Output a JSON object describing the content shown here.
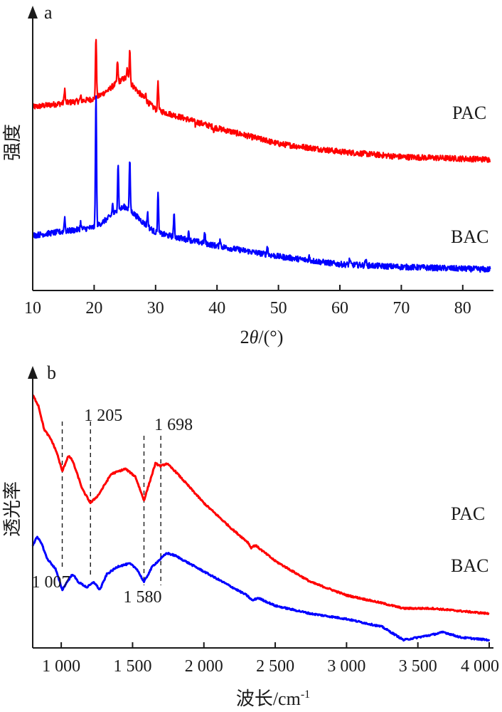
{
  "chart_data": [
    {
      "panel": "a",
      "type": "line",
      "xlabel": "2θ/(°)",
      "ylabel": "强度",
      "xlim": [
        10,
        85
      ],
      "xticks": [
        10,
        20,
        30,
        40,
        50,
        60,
        70,
        80
      ],
      "grid": false,
      "series": [
        {
          "name": "PAC",
          "color": "#ff0000",
          "baseline": [
            [
              10,
              0.7
            ],
            [
              20,
              0.73
            ],
            [
              25,
              0.78
            ],
            [
              30,
              0.69
            ],
            [
              40,
              0.62
            ],
            [
              50,
              0.56
            ],
            [
              60,
              0.53
            ],
            [
              70,
              0.51
            ],
            [
              84.5,
              0.5
            ]
          ],
          "peaks": [
            [
              15.2,
              0.77
            ],
            [
              17.8,
              0.74
            ],
            [
              20.3,
              0.97
            ],
            [
              22.4,
              0.75
            ],
            [
              23.8,
              0.85
            ],
            [
              25.4,
              0.82
            ],
            [
              25.8,
              0.9
            ],
            [
              28.4,
              0.74
            ],
            [
              30.4,
              0.8
            ],
            [
              36.5,
              0.63
            ],
            [
              39.5,
              0.61
            ],
            [
              48.0,
              0.58
            ]
          ]
        },
        {
          "name": "BAC",
          "color": "#0000ff",
          "baseline": [
            [
              10,
              0.21
            ],
            [
              20,
              0.24
            ],
            [
              25,
              0.29
            ],
            [
              30,
              0.22
            ],
            [
              40,
              0.17
            ],
            [
              50,
              0.13
            ],
            [
              60,
              0.1
            ],
            [
              70,
              0.09
            ],
            [
              84.5,
              0.08
            ]
          ],
          "peaks": [
            [
              15.2,
              0.28
            ],
            [
              17.8,
              0.26
            ],
            [
              20.3,
              0.75
            ],
            [
              23.0,
              0.31
            ],
            [
              23.9,
              0.46
            ],
            [
              25.8,
              0.47
            ],
            [
              28.7,
              0.29
            ],
            [
              30.4,
              0.37
            ],
            [
              33.0,
              0.29
            ],
            [
              35.4,
              0.22
            ],
            [
              38.0,
              0.22
            ],
            [
              40.5,
              0.2
            ],
            [
              48.2,
              0.17
            ],
            [
              55.0,
              0.13
            ],
            [
              61.6,
              0.12
            ],
            [
              64.2,
              0.12
            ]
          ]
        }
      ]
    },
    {
      "panel": "b",
      "type": "line",
      "xlabel": "波长/cm-1",
      "ylabel": "透光率",
      "xlim": [
        800,
        4000
      ],
      "xticks": [
        1000,
        1500,
        2000,
        2500,
        3000,
        3500,
        4000
      ],
      "xtick_labels": [
        "1 000",
        "1 500",
        "2 000",
        "2 500",
        "3 000",
        "3 500",
        "4 000"
      ],
      "grid": false,
      "annotations": [
        {
          "x": 1007,
          "label": "1 007"
        },
        {
          "x": 1205,
          "label": "1 205"
        },
        {
          "x": 1580,
          "label": "1 580"
        },
        {
          "x": 1698,
          "label": "1 698"
        }
      ],
      "series": [
        {
          "name": "PAC",
          "color": "#ff0000",
          "points": [
            [
              800,
              0.96
            ],
            [
              840,
              0.92
            ],
            [
              880,
              0.83
            ],
            [
              930,
              0.79
            ],
            [
              970,
              0.74
            ],
            [
              1007,
              0.67
            ],
            [
              1050,
              0.73
            ],
            [
              1080,
              0.71
            ],
            [
              1150,
              0.6
            ],
            [
              1205,
              0.55
            ],
            [
              1260,
              0.58
            ],
            [
              1350,
              0.66
            ],
            [
              1450,
              0.68
            ],
            [
              1520,
              0.65
            ],
            [
              1580,
              0.56
            ],
            [
              1620,
              0.63
            ],
            [
              1660,
              0.7
            ],
            [
              1698,
              0.69
            ],
            [
              1740,
              0.7
            ],
            [
              1800,
              0.67
            ],
            [
              2000,
              0.55
            ],
            [
              2200,
              0.45
            ],
            [
              2310,
              0.4
            ],
            [
              2330,
              0.38
            ],
            [
              2360,
              0.39
            ],
            [
              2500,
              0.33
            ],
            [
              2750,
              0.25
            ],
            [
              3000,
              0.2
            ],
            [
              3250,
              0.17
            ],
            [
              3400,
              0.15
            ],
            [
              3600,
              0.15
            ],
            [
              3800,
              0.14
            ],
            [
              4000,
              0.13
            ]
          ]
        },
        {
          "name": "BAC",
          "color": "#0000ff",
          "points": [
            [
              800,
              0.39
            ],
            [
              830,
              0.42
            ],
            [
              860,
              0.4
            ],
            [
              900,
              0.34
            ],
            [
              960,
              0.3
            ],
            [
              1007,
              0.22
            ],
            [
              1040,
              0.25
            ],
            [
              1080,
              0.28
            ],
            [
              1120,
              0.25
            ],
            [
              1180,
              0.23
            ],
            [
              1230,
              0.25
            ],
            [
              1270,
              0.22
            ],
            [
              1320,
              0.28
            ],
            [
              1400,
              0.31
            ],
            [
              1480,
              0.32
            ],
            [
              1530,
              0.3
            ],
            [
              1580,
              0.25
            ],
            [
              1640,
              0.31
            ],
            [
              1700,
              0.34
            ],
            [
              1740,
              0.36
            ],
            [
              1800,
              0.35
            ],
            [
              2000,
              0.29
            ],
            [
              2200,
              0.23
            ],
            [
              2300,
              0.2
            ],
            [
              2340,
              0.18
            ],
            [
              2380,
              0.19
            ],
            [
              2500,
              0.16
            ],
            [
              2750,
              0.13
            ],
            [
              3000,
              0.11
            ],
            [
              3250,
              0.08
            ],
            [
              3400,
              0.03
            ],
            [
              3600,
              0.05
            ],
            [
              3680,
              0.06
            ],
            [
              3800,
              0.04
            ],
            [
              4000,
              0.03
            ]
          ]
        }
      ]
    }
  ],
  "labels": {
    "panel_a": "a",
    "panel_b": "b",
    "a_ylabel": "强度",
    "b_ylabel": "透光率",
    "a_xlabel_prefix": "2",
    "a_xlabel_theta": "θ",
    "a_xlabel_suffix": "/(°)",
    "b_xlabel_main": "波长/cm",
    "b_xlabel_sup": "-1",
    "a_pac": "PAC",
    "a_bac": "BAC",
    "b_pac": "PAC",
    "b_bac": "BAC"
  }
}
